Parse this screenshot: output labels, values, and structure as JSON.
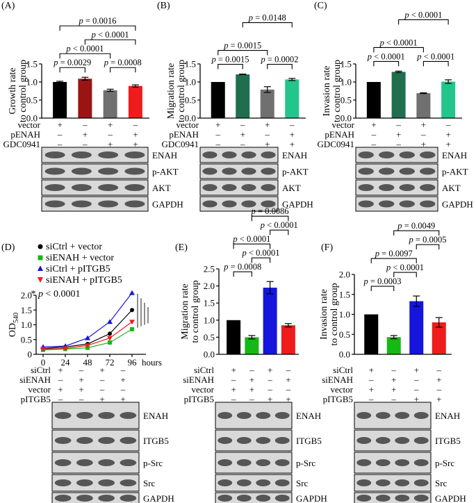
{
  "chart_data": [
    {
      "panel": "(A)",
      "type": "bar",
      "ylabel": "Growth rate\nto control group",
      "ylim": [
        0,
        1.5
      ],
      "yticks": [
        "0.0",
        "0.5",
        "1.0",
        "1.5"
      ],
      "values": [
        1.0,
        1.09,
        0.77,
        0.89
      ],
      "errors": [
        0.02,
        0.04,
        0.03,
        0.03
      ],
      "colors": [
        "#000000",
        "#9b1414",
        "#707070",
        "#ee1c1c"
      ],
      "comparisons": [
        {
          "a": 0,
          "b": 1,
          "label": "p = 0.0029",
          "level": 0
        },
        {
          "a": 2,
          "b": 3,
          "label": "p = 0.0008",
          "level": 0
        },
        {
          "a": 0,
          "b": 2,
          "label": "p < 0.0001",
          "level": 1
        },
        {
          "a": 1,
          "b": 3,
          "label": "p < 0.0001",
          "level": 2
        },
        {
          "a": 0,
          "b": 3,
          "label": "p = 0.0016",
          "level": 3
        }
      ],
      "conditions": [
        {
          "label": "vector",
          "signs": [
            "+",
            "–",
            "+",
            "–"
          ]
        },
        {
          "label": "pENAH",
          "signs": [
            "–",
            "+",
            "–",
            "+"
          ]
        },
        {
          "label": "GDC0941",
          "signs": [
            "–",
            "–",
            "+",
            "+"
          ]
        }
      ],
      "blots": [
        "ENAH",
        "p-AKT",
        "AKT",
        "GAPDH"
      ]
    },
    {
      "panel": "(B)",
      "type": "bar",
      "ylabel": "Migration rate\nto control group",
      "ylim": [
        0,
        1.5
      ],
      "yticks": [
        "0.0",
        "0.5",
        "1.0",
        "1.5"
      ],
      "values": [
        1.0,
        1.21,
        0.79,
        1.07
      ],
      "errors": [
        0.0,
        0.01,
        0.08,
        0.03
      ],
      "colors": [
        "#000000",
        "#1f6f4f",
        "#707070",
        "#22c68a"
      ],
      "comparisons": [
        {
          "a": 0,
          "b": 1,
          "label": "p = 0.0015",
          "level": 0
        },
        {
          "a": 2,
          "b": 3,
          "label": "p = 0.0002",
          "level": 0
        },
        {
          "a": 0,
          "b": 2,
          "label": "p = 0.0015",
          "level": 1
        },
        {
          "a": 1,
          "b": 3,
          "label": "p = 0.0148",
          "level": 3
        }
      ],
      "conditions": [
        {
          "label": "vector",
          "signs": [
            "+",
            "–",
            "+",
            "–"
          ]
        },
        {
          "label": "pENAH",
          "signs": [
            "–",
            "+",
            "–",
            "+"
          ]
        },
        {
          "label": "GDC0941",
          "signs": [
            "–",
            "–",
            "+",
            "+"
          ]
        }
      ],
      "blots": [
        "ENAH",
        "p-AKT",
        "AKT",
        "GAPDH"
      ]
    },
    {
      "panel": "(C)",
      "type": "bar",
      "ylabel": "Invasion rate\nto control group",
      "ylim": [
        0,
        1.5
      ],
      "yticks": [
        "0.0",
        "0.5",
        "1.0",
        "1.5"
      ],
      "values": [
        1.0,
        1.28,
        0.69,
        1.01
      ],
      "errors": [
        0.0,
        0.02,
        0.01,
        0.05
      ],
      "colors": [
        "#000000",
        "#1f6f4f",
        "#707070",
        "#22c68a"
      ],
      "comparisons": [
        {
          "a": 0,
          "b": 1,
          "label": "p < 0.0001",
          "level": 0
        },
        {
          "a": 2,
          "b": 3,
          "label": "p < 0.0001",
          "level": 0
        },
        {
          "a": 0,
          "b": 2,
          "label": "p < 0.0001",
          "level": 1
        },
        {
          "a": 1,
          "b": 3,
          "label": "p < 0.0001",
          "level": 3
        }
      ],
      "conditions": [
        {
          "label": "vector",
          "signs": [
            "+",
            "–",
            "+",
            "–"
          ]
        },
        {
          "label": "pENAH",
          "signs": [
            "–",
            "+",
            "–",
            "+"
          ]
        },
        {
          "label": "GDC0941",
          "signs": [
            "–",
            "–",
            "+",
            "+"
          ]
        }
      ],
      "blots": [
        "ENAH",
        "p-AKT",
        "AKT",
        "GAPDH"
      ]
    },
    {
      "panel": "(D)",
      "type": "line",
      "ylabel": "OD",
      "ylabel_sub": "540",
      "xlabel_unit": "hours",
      "x": [
        0,
        24,
        48,
        72,
        96
      ],
      "ylim": [
        0,
        2.0
      ],
      "yticks": [
        "0",
        "0.5",
        "1.0",
        "1.5",
        "2.0"
      ],
      "series": [
        {
          "name": "siCtrl + vector",
          "color": "#000000",
          "marker": "circle",
          "values": [
            0.2,
            0.25,
            0.35,
            0.7,
            1.5
          ]
        },
        {
          "name": "siENAH + vector",
          "color": "#16b816",
          "marker": "square",
          "values": [
            0.15,
            0.18,
            0.22,
            0.4,
            0.85
          ]
        },
        {
          "name": "siCtrl + pITGB5",
          "color": "#1515dd",
          "marker": "triangle-up",
          "values": [
            0.25,
            0.28,
            0.55,
            1.1,
            2.08
          ]
        },
        {
          "name": "siENAH + pITGB5",
          "color": "#ee1c1c",
          "marker": "triangle-down",
          "values": [
            0.18,
            0.2,
            0.3,
            0.55,
            1.1
          ]
        }
      ],
      "annotation": "* p < 0.0001",
      "conditions": [
        {
          "label": "siCtrl",
          "signs": [
            "+",
            "–",
            "+",
            "–"
          ]
        },
        {
          "label": "siENAH",
          "signs": [
            "–",
            "+",
            "–",
            "+"
          ]
        },
        {
          "label": "vector",
          "signs": [
            "+",
            "+",
            "–",
            "–"
          ]
        },
        {
          "label": "pITGB5",
          "signs": [
            "–",
            "–",
            "+",
            "+"
          ]
        }
      ],
      "blots": [
        "ENAH",
        "ITGB5",
        "p-Src",
        "Src",
        "GAPDH"
      ]
    },
    {
      "panel": "(E)",
      "type": "bar",
      "ylabel": "Migration rate\nto control group",
      "ylim": [
        0,
        2.5
      ],
      "yticks": [
        "0.0",
        "0.5",
        "1.0",
        "1.5",
        "2.0",
        "2.5"
      ],
      "values": [
        1.0,
        0.5,
        1.95,
        0.85
      ],
      "errors": [
        0.0,
        0.05,
        0.18,
        0.05
      ],
      "colors": [
        "#000000",
        "#16b816",
        "#1515dd",
        "#ee1c1c"
      ],
      "comparisons": [
        {
          "a": 0,
          "b": 1,
          "label": "p = 0.0008",
          "level": 0
        },
        {
          "a": 1,
          "b": 2,
          "label": "p < 0.0001",
          "level": 1
        },
        {
          "a": 0,
          "b": 2,
          "label": "p < 0.0001",
          "level": 2
        },
        {
          "a": 2,
          "b": 3,
          "label": "p < 0.0001",
          "level": 3
        },
        {
          "a": 1,
          "b": 3,
          "label": "p = 0.0086",
          "level": 4
        }
      ],
      "conditions": [
        {
          "label": "siCtrl",
          "signs": [
            "+",
            "–",
            "+",
            "–"
          ]
        },
        {
          "label": "siENAH",
          "signs": [
            "–",
            "+",
            "–",
            "+"
          ]
        },
        {
          "label": "vector",
          "signs": [
            "+",
            "+",
            "–",
            "–"
          ]
        },
        {
          "label": "pITGB5",
          "signs": [
            "–",
            "–",
            "+",
            "+"
          ]
        }
      ],
      "blots": [
        "ENAH",
        "ITGB5",
        "p-Src",
        "Src",
        "GAPDH"
      ]
    },
    {
      "panel": "(F)",
      "type": "bar",
      "ylabel": "Invasion rate\nto control group",
      "ylim": [
        0,
        2.0
      ],
      "yticks": [
        "0.0",
        "0.5",
        "1.0",
        "1.5",
        "2.0"
      ],
      "values": [
        1.0,
        0.43,
        1.33,
        0.8
      ],
      "errors": [
        0.0,
        0.04,
        0.13,
        0.12
      ],
      "colors": [
        "#000000",
        "#16b816",
        "#1515dd",
        "#ee1c1c"
      ],
      "comparisons": [
        {
          "a": 0,
          "b": 1,
          "label": "p = 0.0003",
          "level": 0
        },
        {
          "a": 1,
          "b": 2,
          "label": "p < 0.0001",
          "level": 1
        },
        {
          "a": 0,
          "b": 2,
          "label": "p = 0.0097",
          "level": 2
        },
        {
          "a": 2,
          "b": 3,
          "label": "p = 0.0005",
          "level": 3
        },
        {
          "a": 1,
          "b": 3,
          "label": "p = 0.0049",
          "level": 4
        }
      ],
      "conditions": [
        {
          "label": "siCtrl",
          "signs": [
            "+",
            "–",
            "+",
            "–"
          ]
        },
        {
          "label": "siENAH",
          "signs": [
            "–",
            "+",
            "–",
            "+"
          ]
        },
        {
          "label": "vector",
          "signs": [
            "+",
            "+",
            "–",
            "–"
          ]
        },
        {
          "label": "pITGB5",
          "signs": [
            "–",
            "–",
            "+",
            "+"
          ]
        }
      ],
      "blots": [
        "ENAH",
        "ITGB5",
        "p-Src",
        "Src",
        "GAPDH"
      ]
    }
  ]
}
